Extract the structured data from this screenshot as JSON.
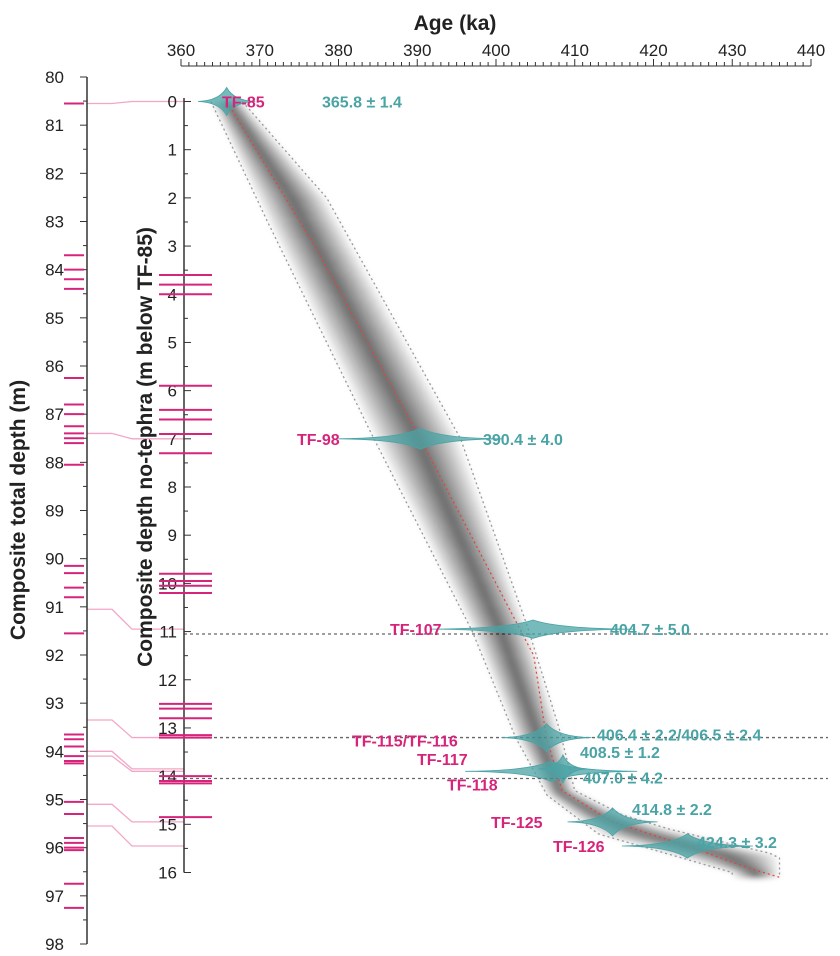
{
  "chart_data": {
    "type": "scatter",
    "x_axis": {
      "title": "Age (ka)",
      "range": [
        360,
        440
      ],
      "major_ticks": [
        360,
        370,
        380,
        390,
        400,
        410,
        420,
        430,
        440
      ],
      "minor_step": 1,
      "position": "top"
    },
    "left_axis": {
      "title": "Composite total depth (m)",
      "range": [
        80,
        98
      ],
      "ticks": [
        80,
        81,
        82,
        83,
        84,
        85,
        86,
        87,
        88,
        89,
        90,
        91,
        92,
        93,
        94,
        95,
        96,
        97,
        98
      ],
      "tephra_marks": [
        80.55,
        83.7,
        84.0,
        84.2,
        84.4,
        86.25,
        86.8,
        87.0,
        87.25,
        87.4,
        87.5,
        87.6,
        88.05,
        90.15,
        90.3,
        90.6,
        90.8,
        91.55,
        93.65,
        93.75,
        93.9,
        94.1,
        94.2,
        94.25,
        95.05,
        95.3,
        95.8,
        95.9,
        96.0,
        96.05,
        96.75,
        97.25
      ]
    },
    "right_axis": {
      "title": "Composite depth no-tephra (m below TF-85)",
      "range": [
        0,
        16
      ],
      "ticks": [
        0,
        1,
        2,
        3,
        4,
        5,
        6,
        7,
        8,
        9,
        10,
        11,
        12,
        13,
        14,
        15,
        16
      ],
      "tephra_marks": [
        3.6,
        3.8,
        4.0,
        5.9,
        6.4,
        6.6,
        6.9,
        7.3,
        9.8,
        9.95,
        10.05,
        10.2,
        12.5,
        12.6,
        12.8,
        13.15,
        13.2,
        14.0,
        14.1,
        14.15,
        14.85
      ]
    },
    "tephra": [
      {
        "name": "TF-85",
        "depth": 0.0,
        "total_depth": 80.55,
        "age": 365.8,
        "error": 1.4,
        "age_label": "365.8 ± 1.4"
      },
      {
        "name": "TF-98",
        "depth": 7.0,
        "total_depth": 87.4,
        "age": 390.4,
        "error": 4.0,
        "age_label": "390.4 ± 4.0"
      },
      {
        "name": "TF-107",
        "depth": 10.95,
        "total_depth": 91.05,
        "age": 404.7,
        "error": 5.0,
        "age_label": "404.7 ± 5.0"
      },
      {
        "name": "TF-115/TF-116",
        "depth": 13.2,
        "total_depth": 93.35,
        "age": 406.4,
        "error": 2.2,
        "age_label": "406.4 ± 2.2/406.5 ± 2.4"
      },
      {
        "name": "TF-117",
        "depth": 13.85,
        "total_depth": 94.0,
        "age": 408.5,
        "error": 1.2,
        "age_label": "408.5 ± 1.2"
      },
      {
        "name": "TF-118",
        "depth": 13.9,
        "total_depth": 94.1,
        "age": 407.0,
        "error": 4.2,
        "age_label": "407.0 ± 4.2"
      },
      {
        "name": "TF-125",
        "depth": 14.95,
        "total_depth": 95.1,
        "age": 414.8,
        "error": 2.2,
        "age_label": "414.8 ± 2.2"
      },
      {
        "name": "TF-126",
        "depth": 15.45,
        "total_depth": 95.55,
        "age": 424.3,
        "error": 3.2,
        "age_label": "424.3 ± 3.2"
      }
    ],
    "age_depth_model": {
      "median": [
        [
          365.8,
          0.0
        ],
        [
          377,
          3.0
        ],
        [
          390.4,
          7.0
        ],
        [
          400,
          10.0
        ],
        [
          404.8,
          11.5
        ],
        [
          406.4,
          13.2
        ],
        [
          408.4,
          14.3
        ],
        [
          414.8,
          14.95
        ],
        [
          424.3,
          15.45
        ],
        [
          432,
          15.9
        ],
        [
          436,
          16.1
        ]
      ],
      "envelope_95_lower": [
        [
          363.8,
          0.0
        ],
        [
          371,
          2.5
        ],
        [
          384.5,
          7.0
        ],
        [
          397,
          11.0
        ],
        [
          402.5,
          13.2
        ],
        [
          406.5,
          14.4
        ],
        [
          413,
          15.2
        ],
        [
          430,
          16.0
        ]
      ],
      "envelope_95_upper": [
        [
          367.8,
          0.0
        ],
        [
          378.5,
          2.0
        ],
        [
          395.5,
          7.0
        ],
        [
          404,
          10.9
        ],
        [
          408,
          13.0
        ],
        [
          410,
          14.3
        ],
        [
          416,
          14.8
        ],
        [
          422,
          15.1
        ],
        [
          436,
          15.65
        ]
      ]
    },
    "hiatus_lines_depth": [
      11.05,
      13.2,
      14.05
    ],
    "colors": {
      "tephra_label": "#d6247b",
      "age_label": "#4aa3a5",
      "density": "#4aa3a5",
      "model_median": "#e8403a",
      "envelope": "#999999",
      "tie_line": "#f3a6c6"
    },
    "grid": false,
    "legend": "none"
  }
}
